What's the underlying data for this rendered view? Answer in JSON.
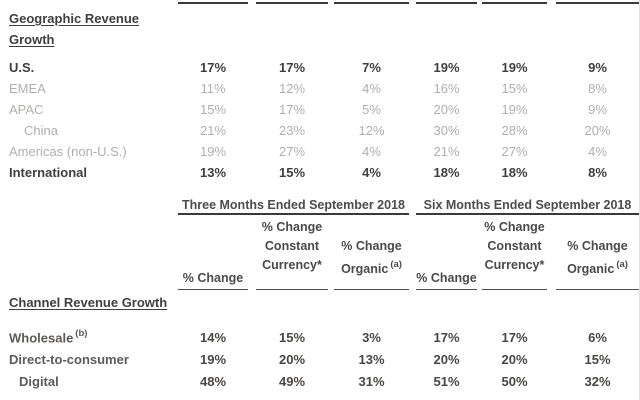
{
  "colors": {
    "text_strong": "#3f3f3f",
    "text_muted": "#b1afad",
    "text_channel": "#5d5b59",
    "rule_dark": "#3a3a3a",
    "rule_light": "#4f4f4f",
    "background": "#ffffff"
  },
  "geo_table": {
    "title": "Geographic Revenue Growth",
    "rows": [
      {
        "label": "U.S.",
        "values": [
          "17%",
          "17%",
          "7%",
          "19%",
          "19%",
          "9%"
        ]
      },
      {
        "label": "EMEA",
        "values": [
          "11%",
          "12%",
          "4%",
          "16%",
          "15%",
          "8%"
        ]
      },
      {
        "label": "APAC",
        "values": [
          "15%",
          "17%",
          "5%",
          "20%",
          "19%",
          "9%"
        ]
      },
      {
        "label": "China",
        "values": [
          "21%",
          "23%",
          "12%",
          "30%",
          "28%",
          "20%"
        ]
      },
      {
        "label": "Americas (non-U.S.)",
        "values": [
          "19%",
          "27%",
          "4%",
          "21%",
          "27%",
          "4%"
        ]
      },
      {
        "label": "International",
        "values": [
          "13%",
          "15%",
          "4%",
          "18%",
          "18%",
          "8%"
        ]
      }
    ]
  },
  "period_headers": {
    "three_months": "Three Months Ended September 2018",
    "six_months": "Six Months Ended September 2018"
  },
  "subheaders": {
    "pct_change": "% Change",
    "cc_line1": "% Change",
    "cc_line2": "Constant",
    "cc_line3": "Currency*",
    "org_line1": "% Change",
    "org_line2": "Organic",
    "org_sup": "(a)"
  },
  "channel_table": {
    "title": "Channel Revenue Growth",
    "rows": [
      {
        "label": "Wholesale",
        "sup": "(b)",
        "values": [
          "14%",
          "15%",
          "3%",
          "17%",
          "17%",
          "6%"
        ]
      },
      {
        "label": "Direct-to-consumer",
        "sup": "",
        "values": [
          "19%",
          "20%",
          "13%",
          "20%",
          "20%",
          "15%"
        ]
      },
      {
        "label": "Digital",
        "sup": "",
        "values": [
          "48%",
          "49%",
          "31%",
          "51%",
          "50%",
          "32%"
        ]
      }
    ]
  }
}
